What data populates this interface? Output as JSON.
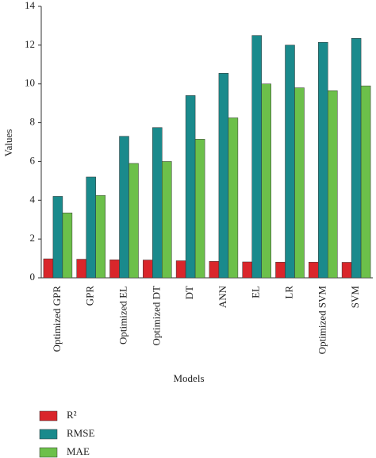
{
  "chart_data": {
    "type": "bar",
    "x_label": "Models",
    "y_label": "Values",
    "categories": [
      "Optimized GPR",
      "GPR",
      "Optimized EL",
      "Optimized DT",
      "DT",
      "ANN",
      "EL",
      "LR",
      "Optimized SVM",
      "SVM"
    ],
    "series": [
      {
        "name": "R²",
        "color": "#d9262b",
        "values": [
          0.98,
          0.96,
          0.93,
          0.92,
          0.88,
          0.85,
          0.82,
          0.81,
          0.81,
          0.8
        ]
      },
      {
        "name": "RMSE",
        "color": "#1a8a8c",
        "values": [
          4.2,
          5.2,
          7.3,
          7.75,
          9.4,
          10.55,
          12.5,
          12.0,
          12.15,
          12.35
        ]
      },
      {
        "name": "MAE",
        "color": "#6cc04a",
        "values": [
          3.35,
          4.25,
          5.9,
          6.0,
          7.15,
          8.25,
          10.0,
          9.8,
          9.65,
          9.9
        ]
      }
    ],
    "ylim": [
      0,
      14
    ],
    "yticks": [
      0,
      2,
      4,
      6,
      8,
      10,
      12,
      14
    ],
    "grid": false,
    "legend": "bottom-left"
  }
}
